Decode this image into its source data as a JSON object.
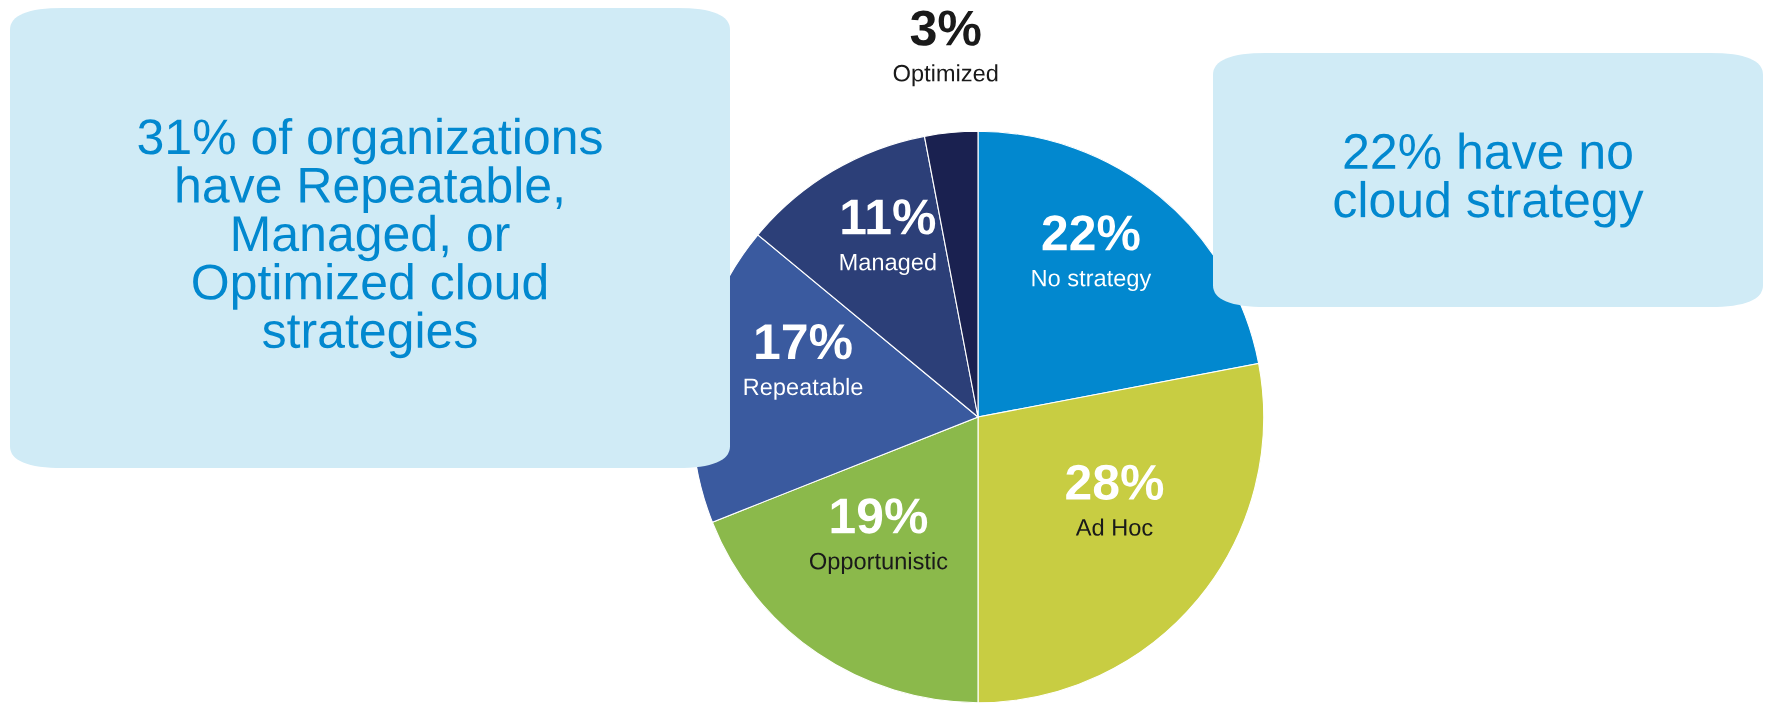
{
  "chart_data": {
    "type": "pie",
    "categories": [
      "No strategy",
      "Ad Hoc",
      "Opportunistic",
      "Repeatable",
      "Managed",
      "Optimized"
    ],
    "values": [
      22,
      28,
      19,
      17,
      11,
      3
    ],
    "value_labels": [
      "22%",
      "28%",
      "19%",
      "17%",
      "11%",
      "3%"
    ],
    "colors": [
      "#0288cf",
      "#c8cd42",
      "#8bb94b",
      "#3a5a9f",
      "#2c3f78",
      "#1a2150"
    ],
    "annotations": [
      "31% of organizations\nhave Repeatable,\nManaged, or\nOptimized cloud\nstrategies",
      "22% have no\ncloud strategy"
    ]
  }
}
